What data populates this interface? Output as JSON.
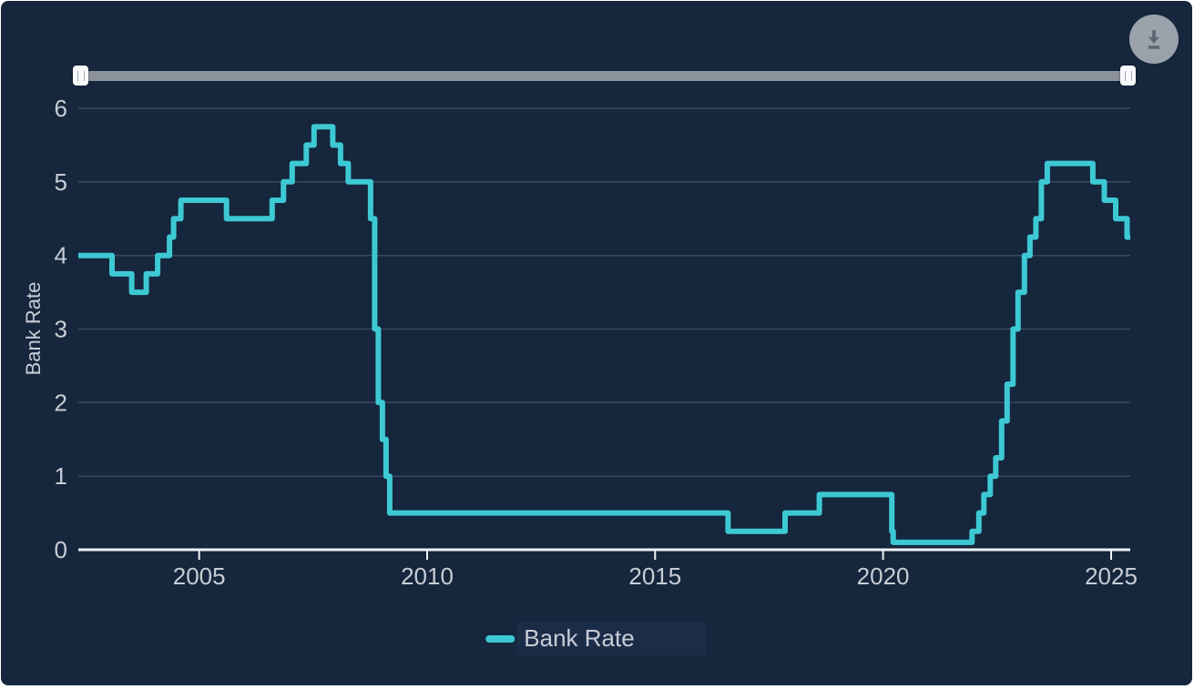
{
  "colors": {
    "panel_bg": "#15263d",
    "line": "#3dc9d4",
    "grid": "#3a4861",
    "axis": "#eef1f4",
    "tick_label": "#c8cdd5",
    "slider_track": "#8c929c",
    "slider_handle": "#fafbfc",
    "download_bg": "#9aa2ac",
    "download_icon": "#5d6670",
    "legend_highlight": "#1b2c49"
  },
  "toolbar": {
    "download_icon_name": "download-icon"
  },
  "slider": {
    "handle_icon_name": "vertical-grip-icon",
    "position": "full-range"
  },
  "chart_data": {
    "type": "line",
    "step": true,
    "title": "",
    "xlabel": "",
    "ylabel": "Bank Rate",
    "xlim": [
      2002.35,
      2025.42
    ],
    "ylim": [
      0,
      6
    ],
    "xticks": [
      2005,
      2010,
      2015,
      2020,
      2025
    ],
    "yticks": [
      0,
      1,
      2,
      3,
      4,
      5,
      6
    ],
    "grid": true,
    "legend_position": "bottom",
    "series": [
      {
        "name": "Bank Rate",
        "color": "#3dc9d4",
        "points": [
          [
            2002.35,
            4.0
          ],
          [
            2003.09,
            3.75
          ],
          [
            2003.52,
            3.5
          ],
          [
            2003.84,
            3.75
          ],
          [
            2004.09,
            4.0
          ],
          [
            2004.35,
            4.25
          ],
          [
            2004.44,
            4.5
          ],
          [
            2004.6,
            4.75
          ],
          [
            2005.6,
            4.5
          ],
          [
            2006.6,
            4.75
          ],
          [
            2006.85,
            5.0
          ],
          [
            2007.04,
            5.25
          ],
          [
            2007.35,
            5.5
          ],
          [
            2007.52,
            5.75
          ],
          [
            2007.93,
            5.5
          ],
          [
            2008.1,
            5.25
          ],
          [
            2008.27,
            5.0
          ],
          [
            2008.76,
            4.5
          ],
          [
            2008.85,
            3.0
          ],
          [
            2008.93,
            2.0
          ],
          [
            2009.02,
            1.5
          ],
          [
            2009.1,
            1.0
          ],
          [
            2009.18,
            0.5
          ],
          [
            2016.6,
            0.25
          ],
          [
            2017.85,
            0.5
          ],
          [
            2018.6,
            0.75
          ],
          [
            2020.19,
            0.25
          ],
          [
            2020.22,
            0.1
          ],
          [
            2021.95,
            0.25
          ],
          [
            2022.1,
            0.5
          ],
          [
            2022.21,
            0.75
          ],
          [
            2022.35,
            1.0
          ],
          [
            2022.47,
            1.25
          ],
          [
            2022.6,
            1.75
          ],
          [
            2022.72,
            2.25
          ],
          [
            2022.85,
            3.0
          ],
          [
            2022.96,
            3.5
          ],
          [
            2023.1,
            4.0
          ],
          [
            2023.22,
            4.25
          ],
          [
            2023.35,
            4.5
          ],
          [
            2023.47,
            5.0
          ],
          [
            2023.6,
            5.25
          ],
          [
            2024.6,
            5.0
          ],
          [
            2024.85,
            4.75
          ],
          [
            2025.1,
            4.5
          ],
          [
            2025.35,
            4.25
          ]
        ]
      }
    ]
  },
  "legend": {
    "items": [
      {
        "label": "Bank Rate",
        "color": "#3dc9d4"
      }
    ]
  }
}
